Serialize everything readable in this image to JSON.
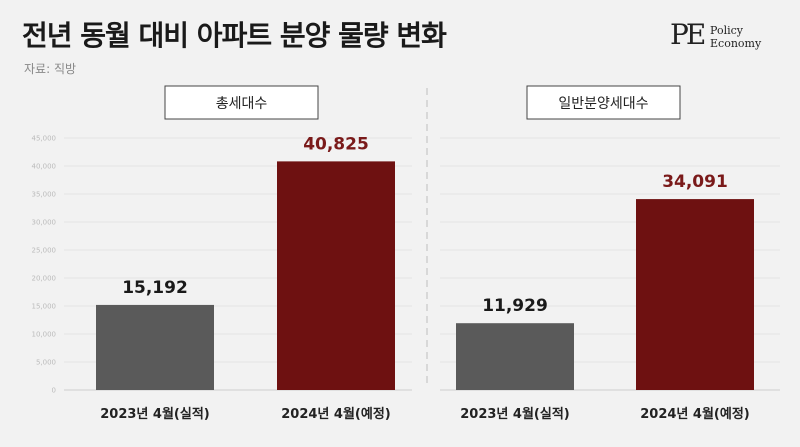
{
  "header": {
    "title": "전년 동월 대비 아파트 분양 물량 변화",
    "source": "자료: 직방"
  },
  "logo": {
    "mark": "PE",
    "line1": "Policy",
    "line2": "Economy"
  },
  "colors": {
    "bar_2023": "#5a5a5a",
    "bar_2024": "#6e1111",
    "label_2023": "#1a1a1a",
    "label_2024": "#7a1a1a"
  },
  "chart_data": [
    {
      "type": "bar",
      "title": "총세대수",
      "categories": [
        "2023년 4월(실적)",
        "2024년 4월(예정)"
      ],
      "values": [
        15192,
        40825
      ],
      "value_labels": [
        "15,192",
        "40,825"
      ],
      "ylim": [
        0,
        45000
      ],
      "yticks": [
        "0",
        "5,000",
        "10,000",
        "15,000",
        "20,000",
        "25,000",
        "30,000",
        "35,000",
        "40,000",
        "45,000"
      ],
      "grid": true
    },
    {
      "type": "bar",
      "title": "일반분양세대수",
      "categories": [
        "2023년 4월(실적)",
        "2024년 4월(예정)"
      ],
      "values": [
        11929,
        34091
      ],
      "value_labels": [
        "11,929",
        "34,091"
      ],
      "ylim": [
        0,
        45000
      ],
      "grid": true
    }
  ]
}
